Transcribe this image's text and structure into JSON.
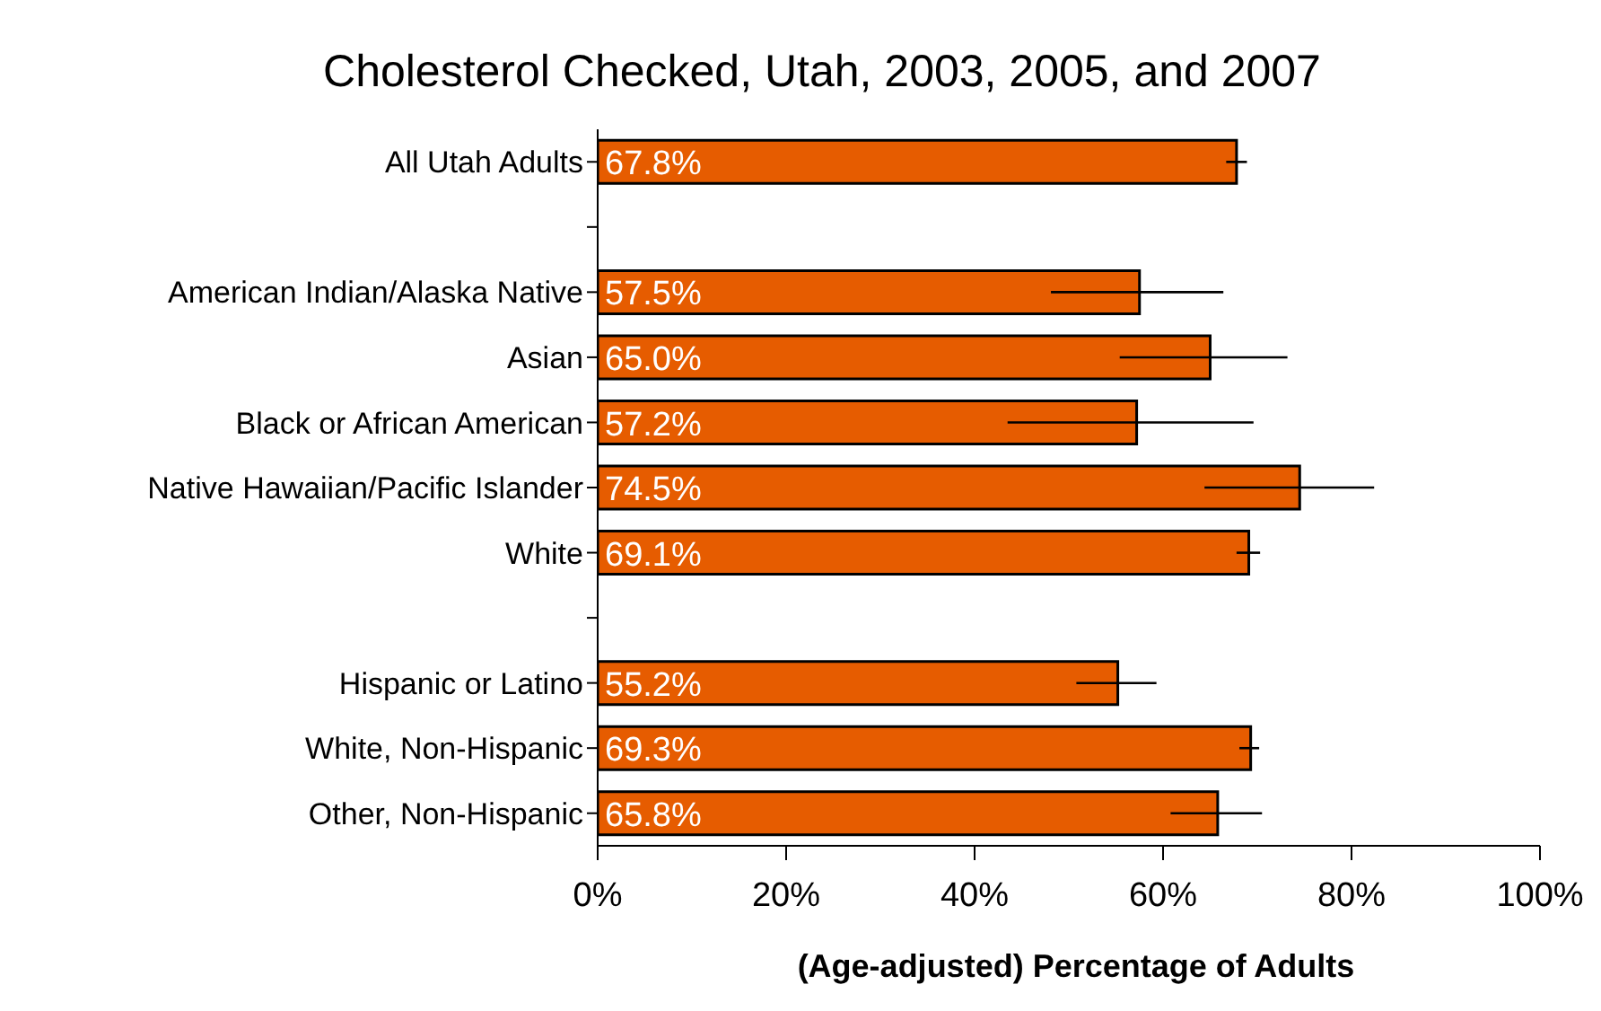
{
  "chart_data": {
    "type": "bar",
    "orientation": "horizontal",
    "title": "Cholesterol Checked, Utah, 2003, 2005, and 2007",
    "xlabel": "(Age-adjusted) Percentage of Adults",
    "categories": [
      "All Utah Adults",
      null,
      "American Indian/Alaska Native",
      "Asian",
      "Black or African American",
      "Native Hawaiian/Pacific Islander",
      "White",
      null,
      "Hispanic or Latino",
      "White, Non-Hispanic",
      "Other, Non-Hispanic"
    ],
    "values": [
      67.8,
      null,
      57.5,
      65.0,
      57.2,
      74.5,
      69.1,
      null,
      55.2,
      69.3,
      65.8
    ],
    "value_labels": [
      "67.8%",
      null,
      "57.5%",
      "65.0%",
      "57.2%",
      "74.5%",
      "69.1%",
      null,
      "55.2%",
      "69.3%",
      "65.8%"
    ],
    "errors": [
      [
        66.7,
        68.9
      ],
      null,
      [
        48.1,
        66.4
      ],
      [
        55.4,
        73.2
      ],
      [
        43.5,
        69.6
      ],
      [
        64.4,
        82.4
      ],
      [
        67.8,
        70.3
      ],
      null,
      [
        50.8,
        59.3
      ],
      [
        68.1,
        70.2
      ],
      [
        60.8,
        70.5
      ]
    ],
    "color": "#e65c00",
    "xlim": [
      0,
      100
    ],
    "xticks": [
      {
        "value": 0,
        "label": "0%"
      },
      {
        "value": 20,
        "label": "20%"
      },
      {
        "value": 40,
        "label": "40%"
      },
      {
        "value": 60,
        "label": "60%"
      },
      {
        "value": 80,
        "label": "80%"
      },
      {
        "value": 100,
        "label": "100%"
      }
    ],
    "grid": false,
    "legend": false
  }
}
